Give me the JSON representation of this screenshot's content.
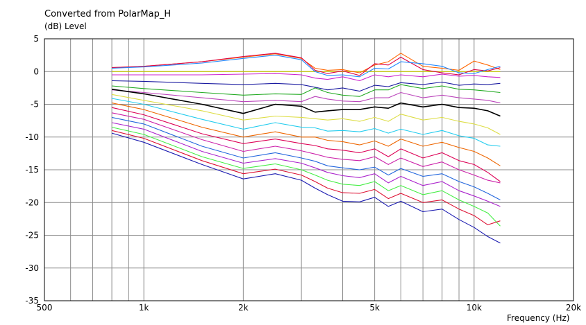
{
  "chart_data": {
    "type": "line",
    "title": "Converted from PolarMap_H",
    "ylabel": "(dB)  Level",
    "xlabel": "Frequency  (Hz)",
    "x_scale": "log",
    "xlim": [
      500,
      20000
    ],
    "ylim": [
      -35,
      5
    ],
    "grid": true,
    "legend": "none",
    "x_ticks": [
      {
        "value": 500,
        "label": "500"
      },
      {
        "value": 1000,
        "label": "1k"
      },
      {
        "value": 2000,
        "label": "2k"
      },
      {
        "value": 5000,
        "label": "5k"
      },
      {
        "value": 10000,
        "label": "10k"
      },
      {
        "value": 20000,
        "label": "20k"
      }
    ],
    "y_ticks": [
      5,
      0,
      -5,
      -10,
      -15,
      -20,
      -25,
      -30,
      -35
    ],
    "x": [
      800,
      1000,
      1500,
      2000,
      2500,
      3000,
      3300,
      3600,
      4000,
      4500,
      5000,
      5500,
      6000,
      7000,
      8000,
      9000,
      10000,
      11000,
      12000
    ],
    "series": [
      {
        "color": "#c8c800",
        "values": [
          0.0,
          0.0,
          0.0,
          0.0,
          0.0,
          0.0,
          0.0,
          0.0,
          0.0,
          0.0,
          0.0,
          0.0,
          0.0,
          0.0,
          0.0,
          0.0,
          0.0,
          0.0,
          0.0
        ]
      },
      {
        "color": "#ff6600",
        "values": [
          0.6,
          0.8,
          1.5,
          2.2,
          2.7,
          2.0,
          0.5,
          0.2,
          0.3,
          -0.2,
          1.0,
          1.5,
          2.8,
          0.8,
          0.5,
          0.2,
          1.6,
          1.0,
          0.3
        ]
      },
      {
        "color": "#dd0044",
        "values": [
          0.6,
          0.8,
          1.5,
          2.3,
          2.8,
          2.1,
          0.2,
          -0.3,
          0.1,
          -0.6,
          1.2,
          1.0,
          2.2,
          0.3,
          -0.2,
          -0.5,
          0.3,
          0.1,
          0.6
        ]
      },
      {
        "color": "#2288ff",
        "values": [
          0.5,
          0.7,
          1.3,
          2.0,
          2.5,
          1.8,
          0.0,
          -0.6,
          -0.5,
          -0.8,
          0.5,
          0.4,
          1.5,
          1.2,
          0.8,
          -0.2,
          -0.3,
          0.3,
          0.8
        ]
      },
      {
        "color": "#cc22cc",
        "values": [
          -0.5,
          -0.5,
          -0.5,
          -0.4,
          -0.3,
          -0.5,
          -1.0,
          -1.2,
          -0.8,
          -1.4,
          -0.5,
          -0.8,
          -0.5,
          -0.8,
          -0.4,
          -0.7,
          -0.6,
          -0.8,
          -0.9
        ]
      },
      {
        "color": "#1a1aa0",
        "values": [
          -1.4,
          -1.5,
          -1.8,
          -2.0,
          -1.8,
          -2.0,
          -2.4,
          -2.8,
          -2.5,
          -3.0,
          -2.1,
          -2.3,
          -1.7,
          -2.0,
          -1.6,
          -2.1,
          -1.9,
          -2.0,
          -1.8
        ]
      },
      {
        "color": "#22aa22",
        "values": [
          -2.2,
          -2.6,
          -3.2,
          -3.6,
          -3.4,
          -3.5,
          -2.5,
          -3.2,
          -3.6,
          -3.8,
          -2.8,
          -2.8,
          -2.0,
          -2.6,
          -2.2,
          -2.7,
          -2.8,
          -3.0,
          -3.2
        ]
      },
      {
        "color": "#bb44bb",
        "values": [
          -2.8,
          -3.2,
          -4.0,
          -4.6,
          -4.4,
          -4.6,
          -3.8,
          -4.2,
          -4.5,
          -4.6,
          -4.0,
          -4.0,
          -3.2,
          -4.0,
          -3.6,
          -4.0,
          -4.2,
          -4.4,
          -4.8
        ]
      },
      {
        "color": "#000000",
        "values": [
          -2.7,
          -3.4,
          -5.0,
          -6.4,
          -5.0,
          -5.3,
          -6.2,
          -6.0,
          -5.8,
          -5.8,
          -5.4,
          -5.6,
          -4.8,
          -5.4,
          -5.0,
          -5.5,
          -5.6,
          -6.0,
          -6.8
        ]
      },
      {
        "color": "#dddd44",
        "values": [
          -3.5,
          -4.4,
          -6.0,
          -7.4,
          -6.8,
          -7.0,
          -7.2,
          -7.4,
          -7.2,
          -7.6,
          -7.0,
          -7.6,
          -6.5,
          -7.4,
          -7.0,
          -7.6,
          -8.0,
          -8.6,
          -9.6
        ]
      },
      {
        "color": "#22ccee",
        "values": [
          -4.1,
          -5.0,
          -7.3,
          -8.8,
          -7.8,
          -8.5,
          -8.6,
          -9.1,
          -9.0,
          -9.2,
          -8.7,
          -9.4,
          -8.8,
          -9.6,
          -9.0,
          -9.8,
          -10.2,
          -11.2,
          -11.4
        ]
      },
      {
        "color": "#ee6600",
        "values": [
          -4.8,
          -5.8,
          -8.5,
          -10.0,
          -9.2,
          -10.0,
          -10.0,
          -10.5,
          -10.7,
          -11.2,
          -10.6,
          -11.4,
          -10.3,
          -11.4,
          -10.8,
          -11.6,
          -12.2,
          -13.2,
          -14.4
        ]
      },
      {
        "color": "#dd0055",
        "values": [
          -5.5,
          -6.6,
          -9.5,
          -11.0,
          -10.3,
          -11.0,
          -11.3,
          -11.8,
          -12.0,
          -12.4,
          -11.8,
          -13.0,
          -11.8,
          -13.2,
          -12.4,
          -13.6,
          -14.2,
          -15.4,
          -16.8
        ]
      },
      {
        "color": "#cc22aa",
        "values": [
          -6.3,
          -7.3,
          -10.4,
          -12.2,
          -11.4,
          -12.1,
          -12.6,
          -13.1,
          -13.4,
          -13.6,
          -13.0,
          -14.2,
          -13.2,
          -14.5,
          -13.8,
          -15.0,
          -15.8,
          -16.6,
          -17.0
        ]
      },
      {
        "color": "#2266dd",
        "values": [
          -7.0,
          -8.0,
          -11.4,
          -13.2,
          -12.4,
          -13.2,
          -13.7,
          -14.4,
          -14.7,
          -15.0,
          -14.6,
          -15.8,
          -14.8,
          -16.0,
          -15.6,
          -16.8,
          -17.6,
          -18.6,
          -19.6
        ]
      },
      {
        "color": "#aa22cc",
        "values": [
          -7.8,
          -8.8,
          -12.2,
          -14.0,
          -13.3,
          -14.0,
          -14.7,
          -15.4,
          -15.9,
          -16.2,
          -15.6,
          -17.0,
          -16.0,
          -17.4,
          -16.8,
          -18.2,
          -19.0,
          -19.8,
          -20.6
        ]
      },
      {
        "color": "#44ee44",
        "values": [
          -8.5,
          -9.6,
          -13.0,
          -14.8,
          -14.1,
          -15.0,
          -15.8,
          -16.6,
          -17.2,
          -17.4,
          -16.8,
          -18.2,
          -17.4,
          -18.8,
          -18.2,
          -19.6,
          -20.6,
          -21.6,
          -23.6
        ]
      },
      {
        "color": "#dd1133",
        "values": [
          -9.0,
          -10.2,
          -13.6,
          -15.6,
          -14.9,
          -15.8,
          -16.8,
          -17.8,
          -18.5,
          -18.6,
          -18.0,
          -19.4,
          -18.6,
          -20.0,
          -19.6,
          -21.0,
          -22.0,
          -23.4,
          -22.8
        ]
      },
      {
        "color": "#1a1ab0",
        "values": [
          -9.4,
          -10.8,
          -14.2,
          -16.4,
          -15.6,
          -16.6,
          -17.8,
          -18.8,
          -19.8,
          -19.9,
          -19.2,
          -20.6,
          -19.8,
          -21.4,
          -21.0,
          -22.6,
          -23.8,
          -25.2,
          -26.2
        ]
      }
    ]
  }
}
